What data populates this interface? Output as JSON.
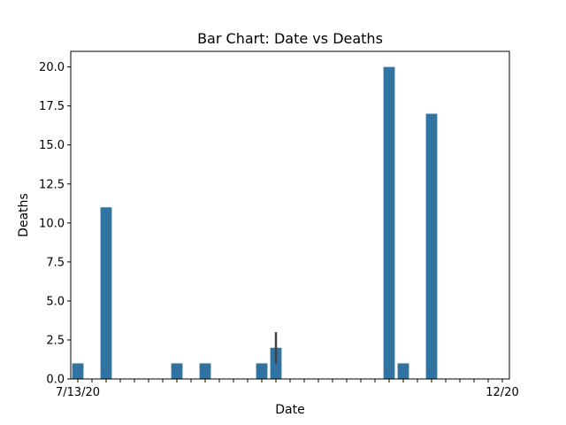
{
  "chart_data": {
    "type": "bar",
    "title": "Bar Chart: Date vs Deaths",
    "xlabel": "Date",
    "ylabel": "Deaths",
    "ylim": [
      0,
      21
    ],
    "yticks": [
      0.0,
      2.5,
      5.0,
      7.5,
      10.0,
      12.5,
      15.0,
      17.5,
      20.0
    ],
    "ytick_labels": [
      "0.0",
      "2.5",
      "5.0",
      "7.5",
      "10.0",
      "12.5",
      "15.0",
      "17.5",
      "20.0"
    ],
    "bar_color": "#3274a1",
    "error_color": "#424242",
    "grid": false,
    "categories": [
      "7/13/20",
      "",
      "",
      "",
      "",
      "",
      "",
      "",
      "",
      "",
      "",
      "",
      "",
      "",
      "",
      "",
      "",
      "",
      "",
      "",
      "",
      "",
      "",
      "",
      "",
      "",
      "",
      "",
      "",
      "",
      "12/20"
    ],
    "values": [
      1,
      0,
      11,
      0,
      0,
      0,
      0,
      1,
      0,
      1,
      0,
      0,
      0,
      1,
      2,
      0,
      0,
      0,
      0,
      0,
      0,
      0,
      20,
      1,
      0,
      17,
      0,
      0,
      0,
      0,
      0
    ],
    "error_bars": [
      null,
      null,
      null,
      null,
      null,
      null,
      null,
      null,
      null,
      null,
      null,
      null,
      null,
      null,
      [
        1,
        3
      ],
      null,
      null,
      null,
      null,
      null,
      null,
      null,
      null,
      null,
      null,
      null,
      null,
      null,
      null,
      null,
      null
    ]
  }
}
